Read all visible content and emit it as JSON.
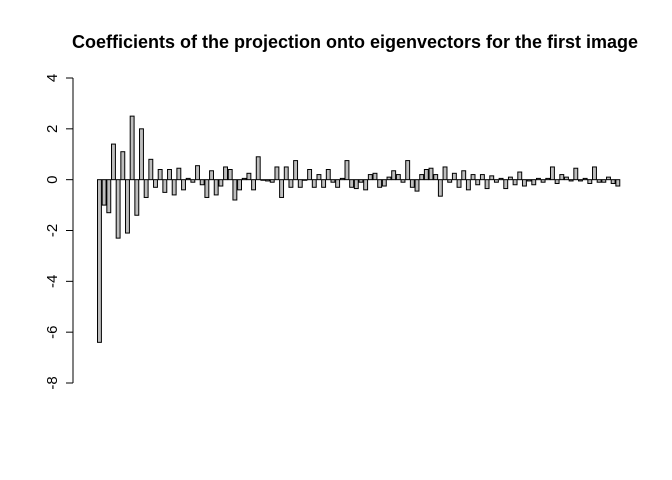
{
  "chart_data": {
    "type": "bar",
    "title": "Coefficients of the projection onto eigenvectors for the first image",
    "xlabel": "",
    "ylabel": "",
    "ylim": [
      -8,
      4
    ],
    "yticks": [
      -8,
      -6,
      -4,
      -2,
      0,
      2,
      4
    ],
    "ytick_labels": [
      "-8",
      "-6",
      "-4",
      "-2",
      "0",
      "2",
      "4"
    ],
    "bar_fill": "#bebebe",
    "bar_border": "#000000",
    "grid": false,
    "values": [
      -6.4,
      -1.0,
      -1.3,
      1.4,
      -2.3,
      1.1,
      -2.1,
      2.5,
      -1.4,
      2.0,
      -0.7,
      0.8,
      -0.3,
      0.4,
      -0.5,
      0.4,
      -0.6,
      0.45,
      -0.4,
      0.05,
      -0.1,
      0.55,
      -0.2,
      -0.7,
      0.35,
      -0.6,
      -0.25,
      0.5,
      0.4,
      -0.8,
      -0.4,
      0.05,
      0.25,
      -0.4,
      0.9,
      0.0,
      -0.05,
      -0.1,
      0.5,
      -0.7,
      0.5,
      -0.3,
      0.75,
      -0.3,
      0.0,
      0.4,
      -0.3,
      0.2,
      -0.3,
      0.4,
      -0.1,
      -0.3,
      0.05,
      0.75,
      -0.3,
      -0.35,
      -0.1,
      -0.4,
      0.2,
      0.25,
      -0.3,
      -0.25,
      0.1,
      0.35,
      0.2,
      -0.1,
      0.75,
      -0.3,
      -0.45,
      0.2,
      0.4,
      0.45,
      0.2,
      -0.65,
      0.5,
      -0.1,
      0.25,
      -0.3,
      0.35,
      -0.4,
      0.2,
      -0.2,
      0.2,
      -0.35,
      0.15,
      -0.1,
      0.05,
      -0.35,
      0.1,
      -0.2,
      0.3,
      -0.25,
      -0.05,
      -0.2,
      0.05,
      -0.1,
      0.05,
      0.5,
      -0.15,
      0.2,
      0.1,
      -0.05,
      0.45,
      -0.05,
      0.05,
      -0.15,
      0.5,
      -0.1,
      -0.1,
      0.1,
      -0.15,
      -0.25
    ]
  }
}
